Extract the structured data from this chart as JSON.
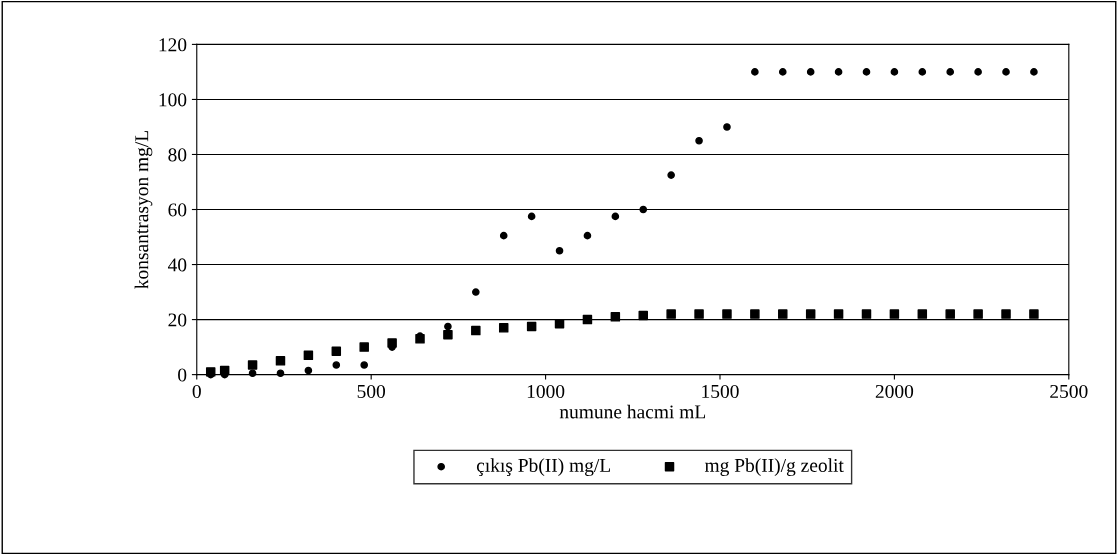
{
  "chart_data": {
    "type": "scatter",
    "xlabel": "numune hacmi mL",
    "ylabel": "konsantrasyon mg/L",
    "x": [
      40,
      80,
      160,
      240,
      320,
      400,
      480,
      560,
      640,
      720,
      800,
      880,
      960,
      1040,
      1120,
      1200,
      1280,
      1360,
      1440,
      1520,
      1600,
      1680,
      1760,
      1840,
      1920,
      2000,
      2080,
      2160,
      2240,
      2320,
      2400
    ],
    "series": [
      {
        "name": "çıkış Pb(II) mg/L",
        "color": "#000000",
        "marker": "circle",
        "values": [
          0,
          0,
          0.5,
          0.5,
          1.5,
          3.5,
          3.5,
          10,
          14,
          17.5,
          30,
          50.5,
          57.5,
          45,
          50.5,
          57.5,
          60,
          72.5,
          85,
          90,
          110,
          110,
          110,
          110,
          110,
          110,
          110,
          110,
          110,
          110,
          110
        ]
      },
      {
        "name": "mg Pb(II)/g zeolit",
        "color": "#000000",
        "marker": "square",
        "values": [
          1,
          1.5,
          3.5,
          5,
          7,
          8.5,
          10,
          11.5,
          13,
          14.5,
          16,
          17,
          17.5,
          18.5,
          20,
          21,
          21.5,
          22,
          22,
          22,
          22,
          22,
          22,
          22,
          22,
          22,
          22,
          22,
          22,
          22,
          22
        ]
      }
    ],
    "xlim": [
      0,
      2500
    ],
    "xticks": [
      0,
      500,
      1000,
      1500,
      2000,
      2500
    ],
    "ylim": [
      0,
      120
    ],
    "yticks": [
      0,
      20,
      40,
      60,
      80,
      100,
      120
    ],
    "grid": "y",
    "legend": "bottom"
  }
}
